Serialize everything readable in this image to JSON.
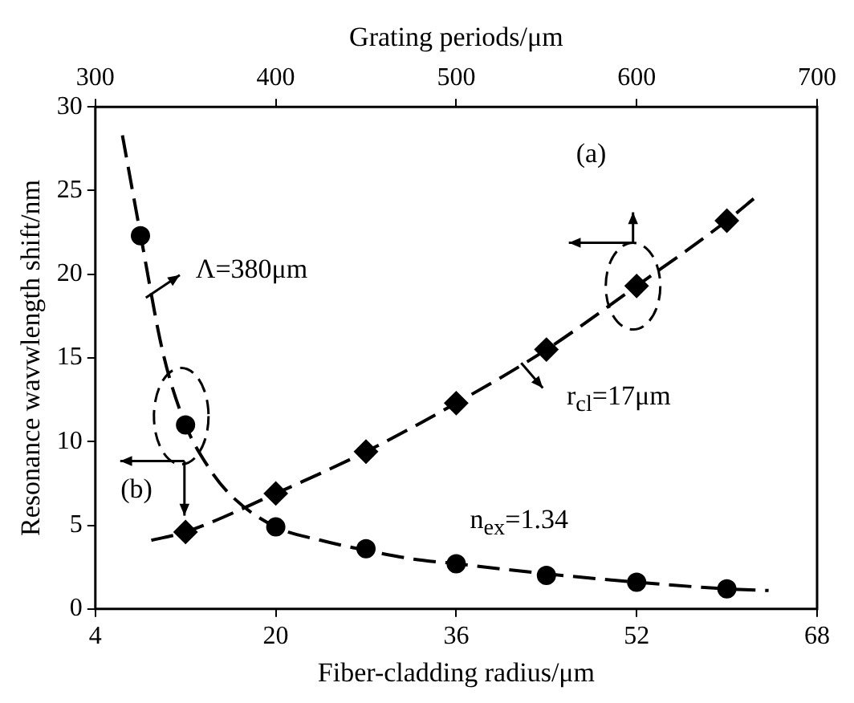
{
  "chart_data": {
    "type": "scatter",
    "xlabel": "Fiber-cladding radius/μm",
    "x2label": "Grating periods/μm",
    "ylabel": "Resonance wavwlength shift/nm",
    "xlim": [
      4,
      68
    ],
    "xticks": [
      4,
      20,
      36,
      52,
      68
    ],
    "x2lim": [
      300,
      700
    ],
    "x2ticks": [
      300,
      400,
      500,
      600,
      700
    ],
    "ylim": [
      0,
      30
    ],
    "yticks": [
      0,
      5,
      10,
      15,
      20,
      25,
      30
    ],
    "grid": false,
    "legend": false,
    "annotations": [
      "(a)",
      "(b)",
      "Λ=380μm",
      "r$_{cl}$=17μm",
      "n$_{ex}$=1.34"
    ],
    "series": [
      {
        "type": "scatter",
        "color": "#000000",
        "marker": "circle",
        "x": [
          8,
          12,
          20,
          28,
          36,
          44,
          52,
          60
        ],
        "values": [
          22.3,
          11.0,
          4.9,
          3.6,
          2.7,
          2.0,
          1.6,
          1.2
        ]
      },
      {
        "type": "line",
        "color": "#000000",
        "marker": "none",
        "line_style": "dashed",
        "x": [
          6.4,
          8,
          10,
          12,
          14,
          16,
          20,
          24,
          28,
          32,
          36,
          44,
          52,
          60,
          63.7
        ],
        "values": [
          28.3,
          22.4,
          15.3,
          11.0,
          8.5,
          6.8,
          4.9,
          4.1,
          3.5,
          3.0,
          2.7,
          2.1,
          1.6,
          1.2,
          1.1
        ]
      },
      {
        "type": "scatter",
        "axis": "x2",
        "color": "#000000",
        "marker": "diamond",
        "x": [
          350,
          400,
          450,
          500,
          550,
          600,
          650
        ],
        "values": [
          4.6,
          6.9,
          9.4,
          12.3,
          15.5,
          19.3,
          23.2
        ]
      },
      {
        "type": "line",
        "axis": "x2",
        "color": "#000000",
        "marker": "none",
        "line_style": "dashed",
        "x": [
          331,
          350,
          400,
          450,
          500,
          550,
          600,
          650,
          667
        ],
        "values": [
          4.1,
          4.6,
          6.9,
          9.4,
          12.3,
          15.5,
          19.3,
          23.2,
          24.7
        ]
      }
    ]
  }
}
